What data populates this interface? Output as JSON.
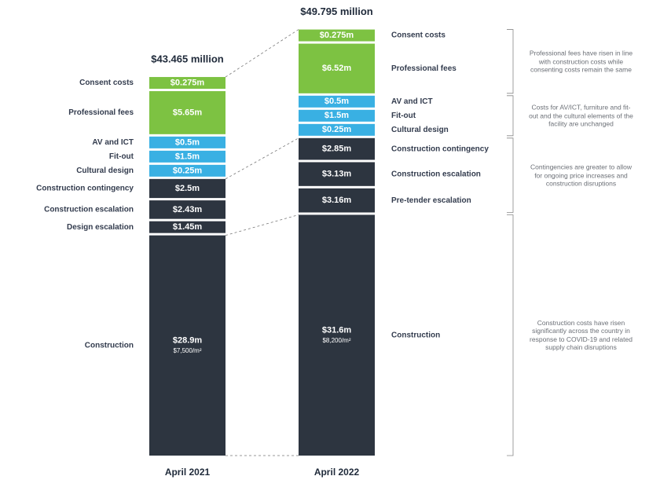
{
  "chart_data": {
    "type": "stacked-bar",
    "bars": [
      {
        "label": "April 2021",
        "total_label": "$43.465 million",
        "segments": [
          {
            "name": "Consent costs",
            "value": 0.275,
            "value_label": "$0.275m",
            "color": "#7dc242"
          },
          {
            "name": "Professional fees",
            "value": 5.65,
            "value_label": "$5.65m",
            "color": "#7dc242"
          },
          {
            "name": "AV and ICT",
            "value": 0.5,
            "value_label": "$0.5m",
            "color": "#39b0e3"
          },
          {
            "name": "Fit-out",
            "value": 1.5,
            "value_label": "$1.5m",
            "color": "#39b0e3"
          },
          {
            "name": "Cultural design",
            "value": 0.25,
            "value_label": "$0.25m",
            "color": "#39b0e3"
          },
          {
            "name": "Construction contingency",
            "value": 2.5,
            "value_label": "$2.5m",
            "color": "#2d3540"
          },
          {
            "name": "Construction escalation",
            "value": 2.43,
            "value_label": "$2.43m",
            "color": "#2d3540"
          },
          {
            "name": "Design escalation",
            "value": 1.45,
            "value_label": "$1.45m",
            "color": "#2d3540"
          },
          {
            "name": "Construction",
            "value": 28.9,
            "value_label": "$28.9m",
            "sub_label": "$7,500/m²",
            "color": "#2d3540"
          }
        ]
      },
      {
        "label": "April 2022",
        "total_label": "$49.795 million",
        "segments": [
          {
            "name": "Consent costs",
            "value": 0.275,
            "value_label": "$0.275m",
            "color": "#7dc242"
          },
          {
            "name": "Professional fees",
            "value": 6.52,
            "value_label": "$6.52m",
            "color": "#7dc242"
          },
          {
            "name": "AV and ICT",
            "value": 0.5,
            "value_label": "$0.5m",
            "color": "#39b0e3"
          },
          {
            "name": "Fit-out",
            "value": 1.5,
            "value_label": "$1.5m",
            "color": "#39b0e3"
          },
          {
            "name": "Cultural design",
            "value": 0.25,
            "value_label": "$0.25m",
            "color": "#39b0e3"
          },
          {
            "name": "Construction contingency",
            "value": 2.85,
            "value_label": "$2.85m",
            "color": "#2d3540"
          },
          {
            "name": "Construction escalation",
            "value": 3.13,
            "value_label": "$3.13m",
            "color": "#2d3540"
          },
          {
            "name": "Pre-tender escalation",
            "value": 3.16,
            "value_label": "$3.16m",
            "color": "#2d3540"
          },
          {
            "name": "Construction",
            "value": 31.6,
            "value_label": "$31.6m",
            "sub_label": "$8,200/m²",
            "color": "#2d3540"
          }
        ]
      }
    ],
    "annotations": [
      "Professional fees have risen in line with construction costs while consenting costs remain the same",
      "Costs for AV/ICT, furniture and fit-out and the cultural elements of the facility are unchanged",
      "Contingencies are greater to allow for ongoing price increases and construction disruptions",
      "Construction costs have risen significantly across the country in response to COVID-19 and related supply chain disruptions"
    ]
  }
}
